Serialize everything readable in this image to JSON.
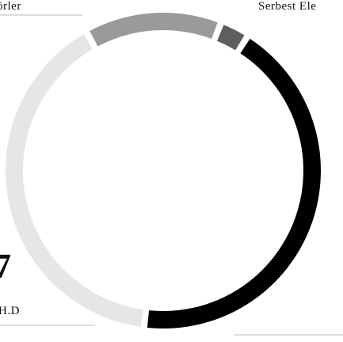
{
  "chart_data": {
    "type": "donut",
    "values": [
      14,
      3,
      43,
      40
    ],
    "colors": [
      "#9a9a9a",
      "#5e5e5e",
      "#000000",
      "#e6e6e6"
    ],
    "texts": [
      "örler",
      "Serbest Ele",
      "7",
      "H.D"
    ]
  }
}
